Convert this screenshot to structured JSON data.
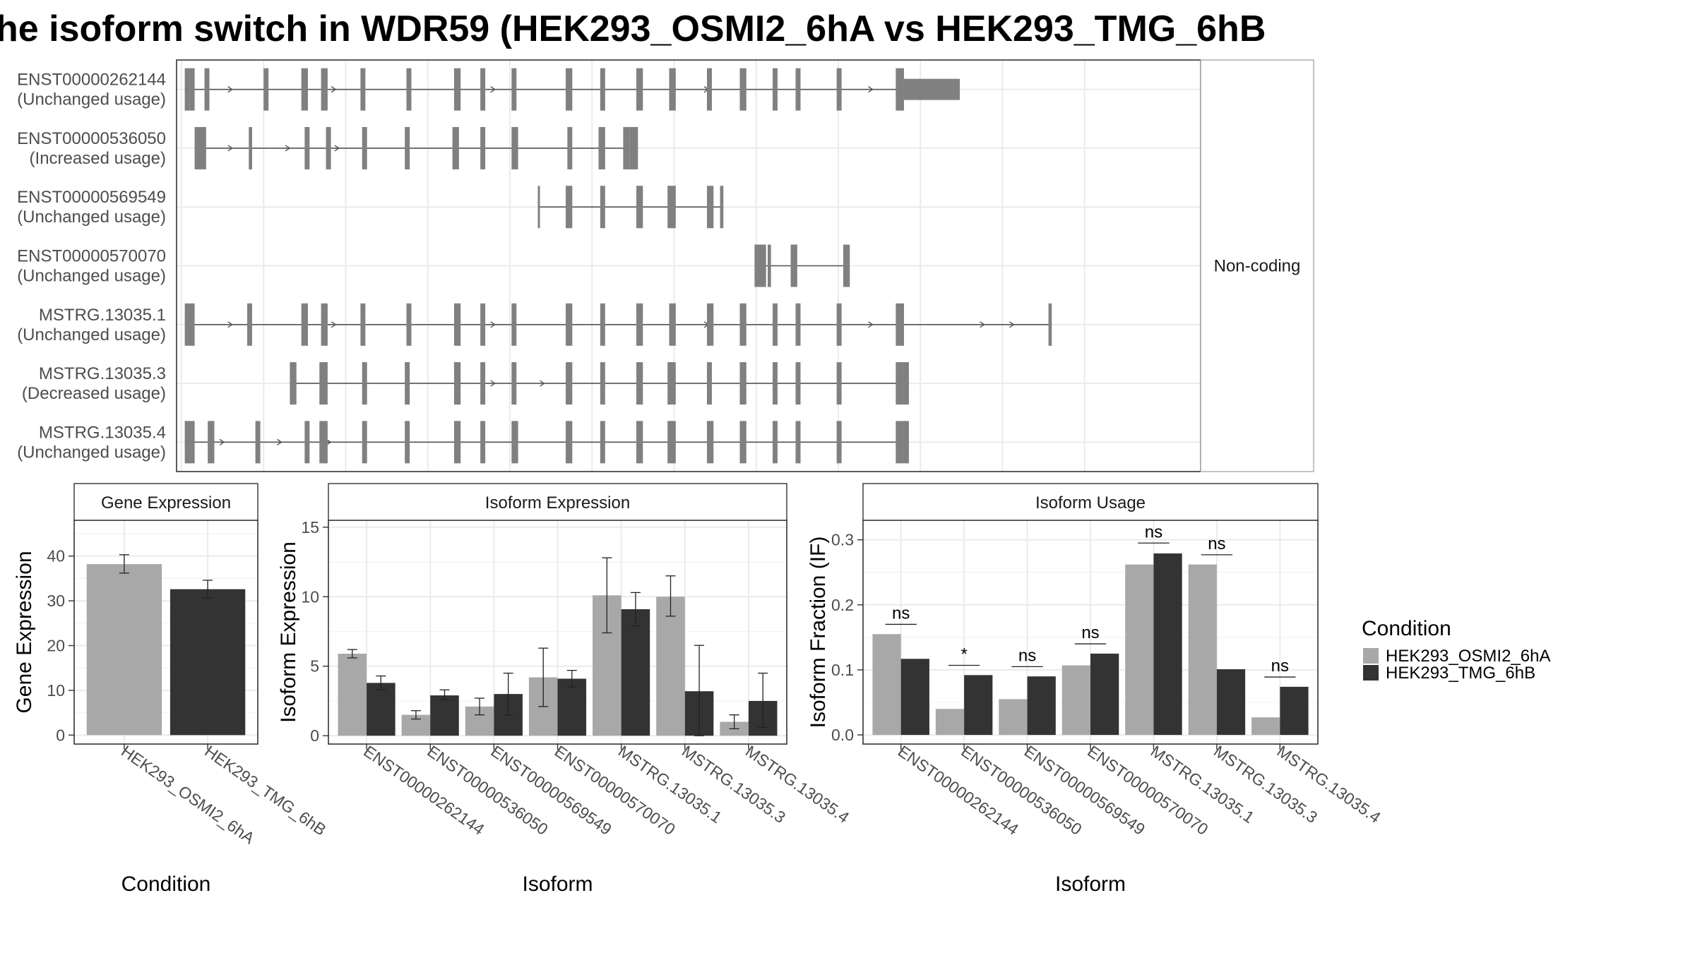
{
  "title": "he isoform switch in WDR59 (HEK293_OSMI2_6hA vs HEK293_TMG_6hB",
  "colors": {
    "condA": "#a8a8a8",
    "condB": "#333333",
    "exon": "#808080",
    "intron": "#555555",
    "grid": "#ebebeb"
  },
  "structure": {
    "strip_label": "Non-coding",
    "transcripts": [
      {
        "id": "ENST00000262144",
        "usage": "(Unchanged usage)",
        "exons": [
          [
            102,
            105
          ],
          [
            105,
            108
          ],
          [
            114,
            117
          ],
          [
            150,
            153
          ],
          [
            173,
            177
          ],
          [
            185,
            189
          ],
          [
            209,
            212
          ],
          [
            237,
            240
          ],
          [
            266,
            270
          ],
          [
            282,
            285
          ],
          [
            301,
            304
          ],
          [
            334,
            338
          ],
          [
            355,
            358
          ],
          [
            377,
            381
          ],
          [
            397,
            401
          ],
          [
            420,
            423
          ],
          [
            440,
            444
          ],
          [
            460,
            463
          ],
          [
            474,
            477
          ],
          [
            499,
            502
          ],
          [
            535,
            540
          ],
          [
            540,
            574
          ]
        ],
        "arrows": [
          130,
          193,
          290,
          400,
          420,
          520
        ]
      },
      {
        "id": "ENST00000536050",
        "usage": "(Increased usage)",
        "exons": [
          [
            108,
            115
          ],
          [
            141,
            143
          ],
          [
            175,
            178
          ],
          [
            188,
            191
          ],
          [
            210,
            213
          ],
          [
            236,
            239
          ],
          [
            265,
            269
          ],
          [
            282,
            285
          ],
          [
            301,
            305
          ],
          [
            335,
            338
          ],
          [
            354,
            358
          ],
          [
            369,
            373
          ],
          [
            373,
            378
          ]
        ],
        "arrows": [
          130,
          165,
          195
        ]
      },
      {
        "id": "ENST00000569549",
        "usage": "(Unchanged usage)",
        "exons": [
          [
            317,
            318
          ],
          [
            334,
            338
          ],
          [
            355,
            358
          ],
          [
            377,
            381
          ],
          [
            396,
            401
          ],
          [
            420,
            424
          ],
          [
            428,
            430
          ]
        ],
        "arrows": []
      },
      {
        "id": "ENST00000570070",
        "usage": "(Unchanged usage)",
        "exons": [
          [
            449,
            456
          ],
          [
            457,
            459
          ],
          [
            471,
            475
          ],
          [
            503,
            507
          ]
        ],
        "arrows": []
      },
      {
        "id": "MSTRG.13035.1",
        "usage": "(Unchanged usage)",
        "exons": [
          [
            102,
            108
          ],
          [
            140,
            143
          ],
          [
            173,
            177
          ],
          [
            185,
            189
          ],
          [
            209,
            212
          ],
          [
            237,
            240
          ],
          [
            266,
            270
          ],
          [
            282,
            285
          ],
          [
            301,
            304
          ],
          [
            334,
            338
          ],
          [
            355,
            358
          ],
          [
            377,
            381
          ],
          [
            397,
            401
          ],
          [
            420,
            424
          ],
          [
            440,
            444
          ],
          [
            460,
            463
          ],
          [
            474,
            477
          ],
          [
            499,
            502
          ],
          [
            535,
            540
          ],
          [
            628,
            630
          ]
        ],
        "arrows": [
          130,
          193,
          290,
          400,
          420,
          520,
          588,
          606
        ]
      },
      {
        "id": "MSTRG.13035.3",
        "usage": "(Decreased usage)",
        "exons": [
          [
            166,
            170
          ],
          [
            184,
            189
          ],
          [
            210,
            213
          ],
          [
            236,
            239
          ],
          [
            266,
            270
          ],
          [
            282,
            285
          ],
          [
            301,
            304
          ],
          [
            334,
            338
          ],
          [
            355,
            358
          ],
          [
            377,
            381
          ],
          [
            396,
            401
          ],
          [
            420,
            423
          ],
          [
            440,
            444
          ],
          [
            460,
            463
          ],
          [
            474,
            477
          ],
          [
            499,
            502
          ],
          [
            535,
            540
          ],
          [
            540,
            543
          ]
        ],
        "arrows": [
          290,
          320
        ]
      },
      {
        "id": "MSTRG.13035.4",
        "usage": "(Unchanged usage)",
        "exons": [
          [
            102,
            106
          ],
          [
            106,
            108
          ],
          [
            116,
            120
          ],
          [
            145,
            148
          ],
          [
            175,
            178
          ],
          [
            184,
            189
          ],
          [
            210,
            213
          ],
          [
            236,
            239
          ],
          [
            266,
            270
          ],
          [
            282,
            285
          ],
          [
            301,
            305
          ],
          [
            334,
            338
          ],
          [
            355,
            358
          ],
          [
            377,
            381
          ],
          [
            396,
            401
          ],
          [
            420,
            424
          ],
          [
            440,
            444
          ],
          [
            460,
            463
          ],
          [
            474,
            477
          ],
          [
            499,
            502
          ],
          [
            535,
            540
          ],
          [
            540,
            543
          ]
        ],
        "arrows": [
          125,
          160,
          190
        ]
      }
    ]
  },
  "chart_data": [
    {
      "type": "bar",
      "title": "Gene Expression",
      "xlabel": "Condition",
      "ylabel": "Gene Expression",
      "categories": [
        "HEK293_OSMI2_6hA",
        "HEK293_TMG_6hB"
      ],
      "values": [
        38.2,
        32.6
      ],
      "errors": [
        [
          36.2,
          40.3
        ],
        [
          30.6,
          34.6
        ]
      ],
      "ylim": [
        -2,
        48
      ],
      "yticks": [
        0,
        10,
        20,
        30,
        40
      ],
      "grid": true
    },
    {
      "type": "bar",
      "title": "Isoform Expression",
      "xlabel": "Isoform",
      "ylabel": "Isoform Expression",
      "categories": [
        "ENST00000262144",
        "ENST00000536050",
        "ENST00000569549",
        "ENST00000570070",
        "MSTRG.13035.1",
        "MSTRG.13035.3",
        "MSTRG.13035.4"
      ],
      "series": [
        {
          "name": "HEK293_OSMI2_6hA",
          "values": [
            5.9,
            1.5,
            2.1,
            4.2,
            10.1,
            10.0,
            1.0
          ],
          "errors": [
            [
              5.6,
              6.2
            ],
            [
              1.2,
              1.8
            ],
            [
              1.5,
              2.7
            ],
            [
              2.1,
              6.3
            ],
            [
              7.4,
              12.8
            ],
            [
              8.6,
              11.5
            ],
            [
              0.5,
              1.5
            ]
          ]
        },
        {
          "name": "HEK293_TMG_6hB",
          "values": [
            3.8,
            2.9,
            3.0,
            4.1,
            9.1,
            3.2,
            2.5
          ],
          "errors": [
            [
              3.3,
              4.3
            ],
            [
              2.6,
              3.3
            ],
            [
              1.5,
              4.5
            ],
            [
              3.5,
              4.7
            ],
            [
              7.9,
              10.3
            ],
            [
              0.0,
              6.5
            ],
            [
              0.6,
              4.5
            ]
          ]
        }
      ],
      "ylim": [
        -0.6,
        15.5
      ],
      "yticks": [
        0,
        5,
        10,
        15
      ],
      "grid": true
    },
    {
      "type": "bar",
      "title": "Isoform Usage",
      "xlabel": "Isoform",
      "ylabel": "Isoform Fraction (IF)",
      "categories": [
        "ENST00000262144",
        "ENST00000536050",
        "ENST00000569549",
        "ENST00000570070",
        "MSTRG.13035.1",
        "MSTRG.13035.3",
        "MSTRG.13035.4"
      ],
      "series": [
        {
          "name": "HEK293_OSMI2_6hA",
          "values": [
            0.155,
            0.04,
            0.055,
            0.107,
            0.262,
            0.262,
            0.027
          ]
        },
        {
          "name": "HEK293_TMG_6hB",
          "values": [
            0.117,
            0.092,
            0.09,
            0.125,
            0.279,
            0.101,
            0.074
          ]
        }
      ],
      "significance": [
        "ns",
        "*",
        "ns",
        "ns",
        "ns",
        "ns",
        "ns"
      ],
      "sig_y": [
        0.17,
        0.107,
        0.105,
        0.14,
        0.295,
        0.277,
        0.089
      ],
      "ylim": [
        -0.014,
        0.33
      ],
      "yticks": [
        0.0,
        0.1,
        0.2,
        0.3
      ],
      "ytick_labels": [
        "0.0",
        "0.1",
        "0.2",
        "0.3"
      ],
      "grid": true
    }
  ],
  "legend": {
    "title": "Condition",
    "items": [
      "HEK293_OSMI2_6hA",
      "HEK293_TMG_6hB"
    ],
    "placement": "right"
  }
}
